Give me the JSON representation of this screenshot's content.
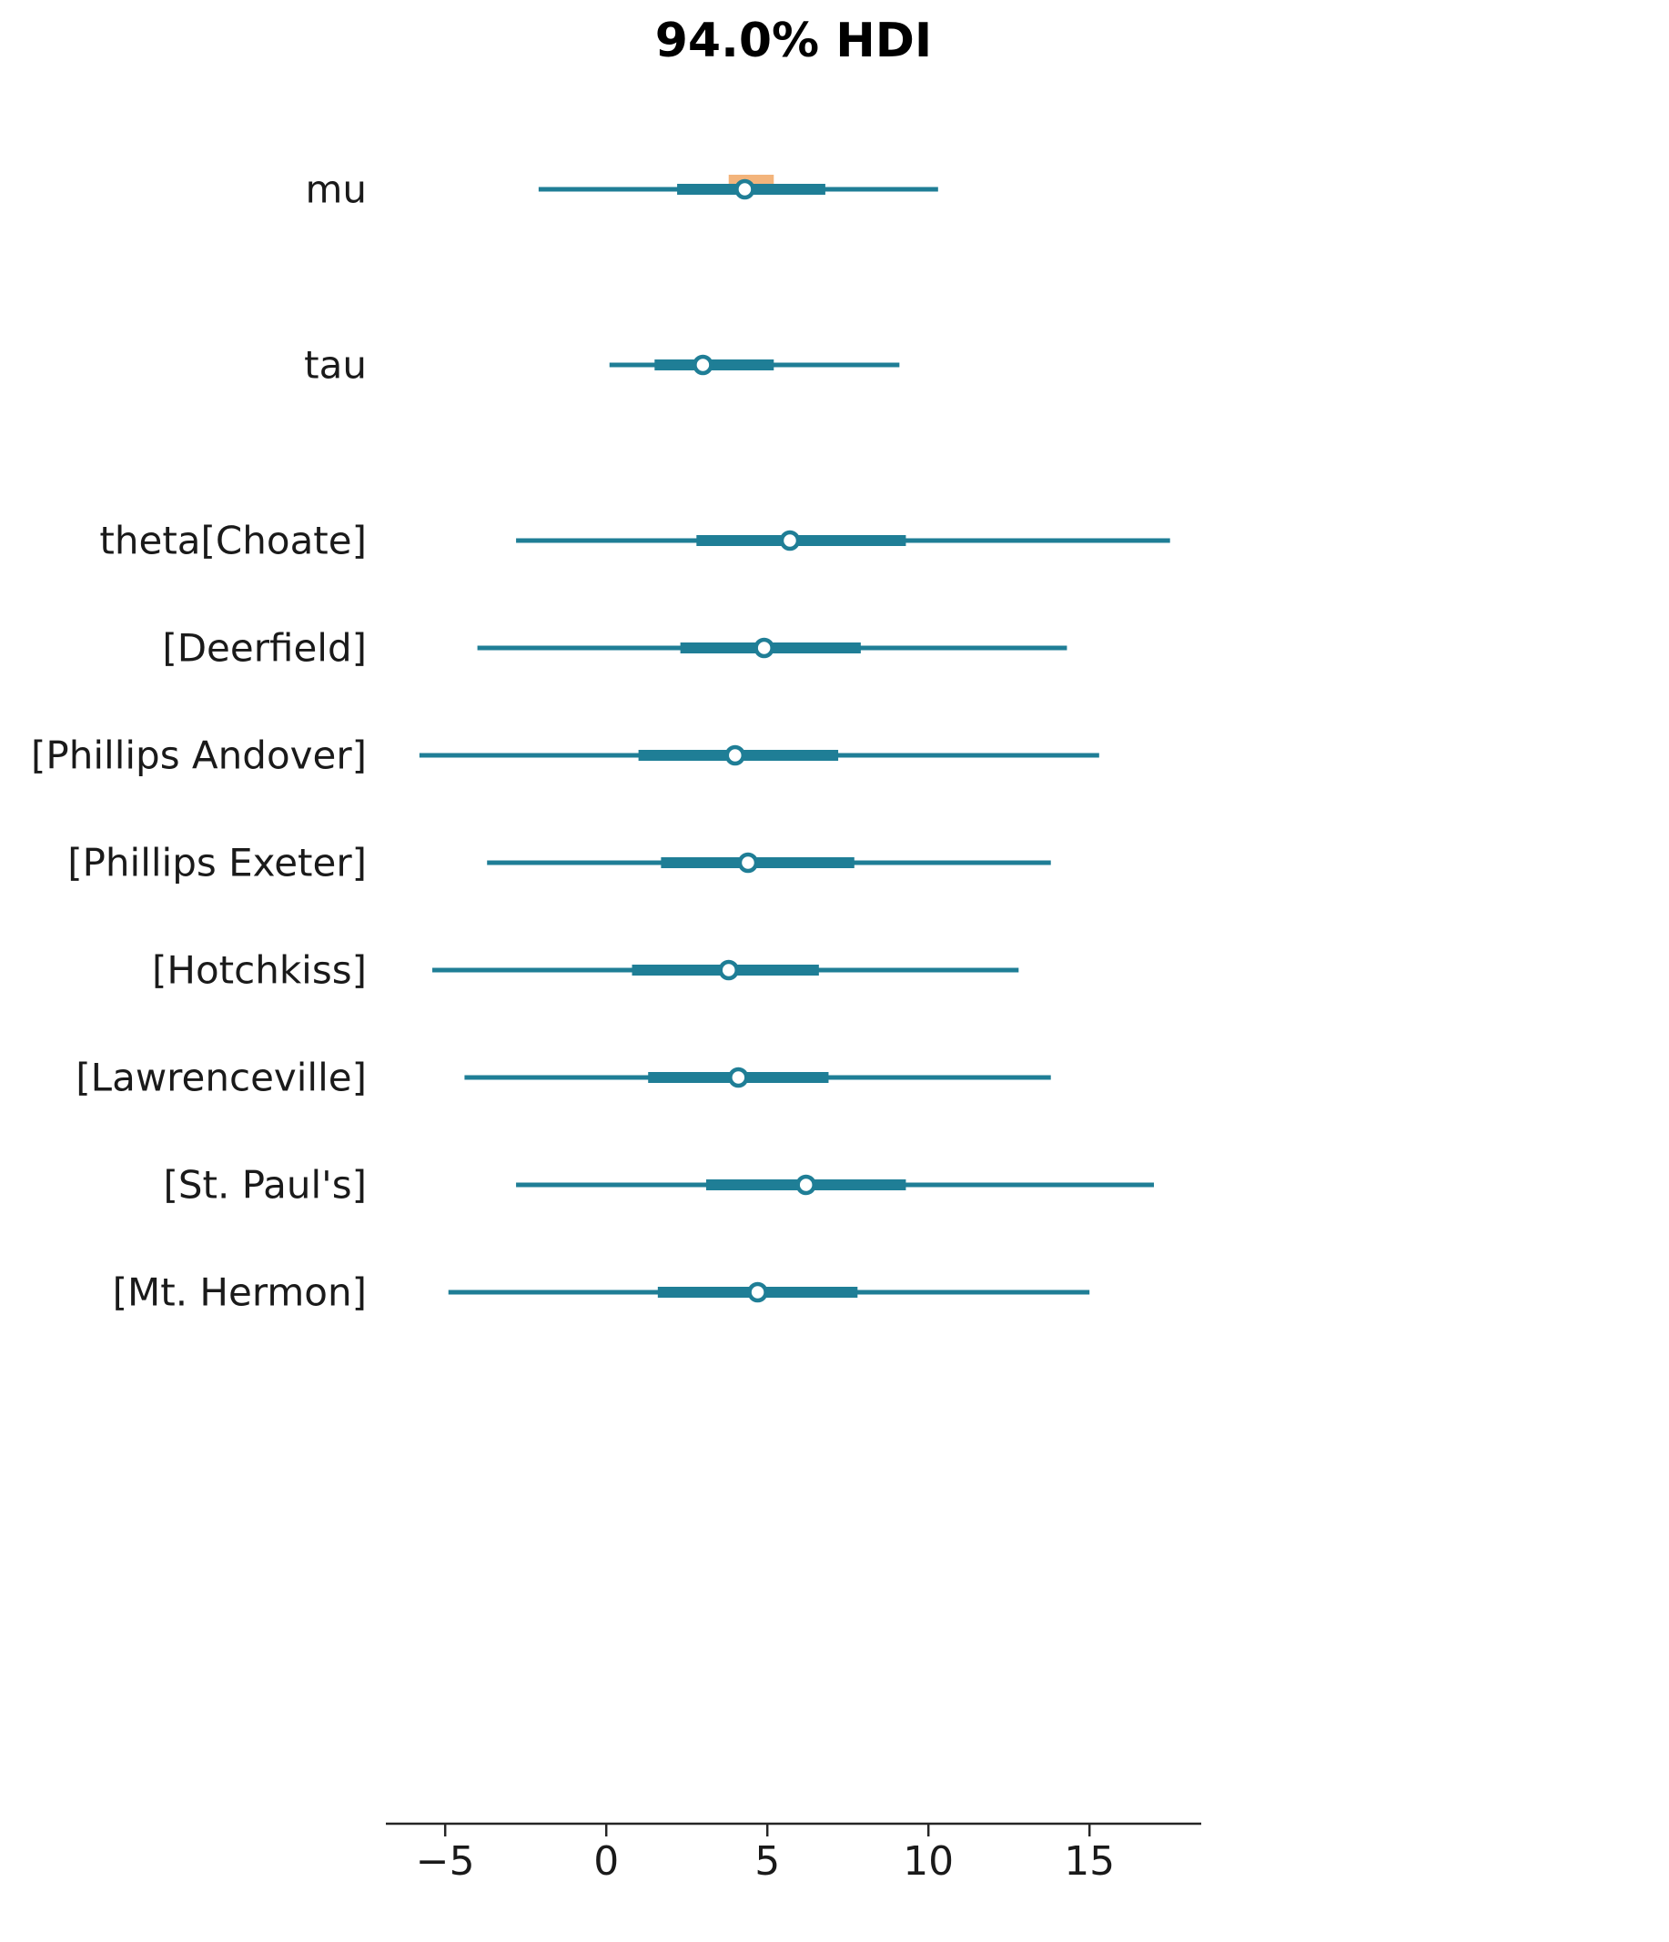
{
  "chart_data": {
    "type": "forest",
    "title": "94.0% HDI",
    "xlabel": "",
    "ylabel": "",
    "grid": false,
    "legend_position": "none",
    "xlim": [
      -6.8,
      18.5
    ],
    "x_ticks": [
      -5,
      0,
      5,
      10,
      15
    ],
    "x_tick_labels": [
      "−5",
      "0",
      "5",
      "10",
      "15"
    ],
    "interval_note": "thin line = 94% HDI, thick line = interquartile range, circle = median, orange band = ROPE",
    "colors": {
      "interval": "#1f7e96",
      "median_fill": "#ffffff",
      "rope": "#f2b074",
      "axis": "#262626",
      "text": "#1a1a1a"
    },
    "rows": [
      {
        "label": "mu",
        "group": "mu",
        "hdi": [
          -2.1,
          10.3
        ],
        "quartile": [
          2.2,
          6.8
        ],
        "median": 4.3,
        "rope": [
          3.8,
          5.2
        ]
      },
      {
        "label": "tau",
        "group": "tau",
        "hdi": [
          0.1,
          9.1
        ],
        "quartile": [
          1.5,
          5.2
        ],
        "median": 3.0
      },
      {
        "label": "theta[Choate]",
        "group": "theta",
        "hdi": [
          -2.8,
          17.5
        ],
        "quartile": [
          2.8,
          9.3
        ],
        "median": 5.7
      },
      {
        "label": "[Deerfield]",
        "group": "theta",
        "hdi": [
          -4.0,
          14.3
        ],
        "quartile": [
          2.3,
          7.9
        ],
        "median": 4.9
      },
      {
        "label": "[Phillips Andover]",
        "group": "theta",
        "hdi": [
          -5.8,
          15.3
        ],
        "quartile": [
          1.0,
          7.2
        ],
        "median": 4.0
      },
      {
        "label": "[Phillips Exeter]",
        "group": "theta",
        "hdi": [
          -3.7,
          13.8
        ],
        "quartile": [
          1.7,
          7.7
        ],
        "median": 4.4
      },
      {
        "label": "[Hotchkiss]",
        "group": "theta",
        "hdi": [
          -5.4,
          12.8
        ],
        "quartile": [
          0.8,
          6.6
        ],
        "median": 3.8
      },
      {
        "label": "[Lawrenceville]",
        "group": "theta",
        "hdi": [
          -4.4,
          13.8
        ],
        "quartile": [
          1.3,
          6.9
        ],
        "median": 4.1
      },
      {
        "label": "[St. Paul's]",
        "group": "theta",
        "hdi": [
          -2.8,
          17.0
        ],
        "quartile": [
          3.1,
          9.3
        ],
        "median": 6.2
      },
      {
        "label": "[Mt. Hermon]",
        "group": "theta",
        "hdi": [
          -4.9,
          15.0
        ],
        "quartile": [
          1.6,
          7.8
        ],
        "median": 4.7
      }
    ]
  }
}
